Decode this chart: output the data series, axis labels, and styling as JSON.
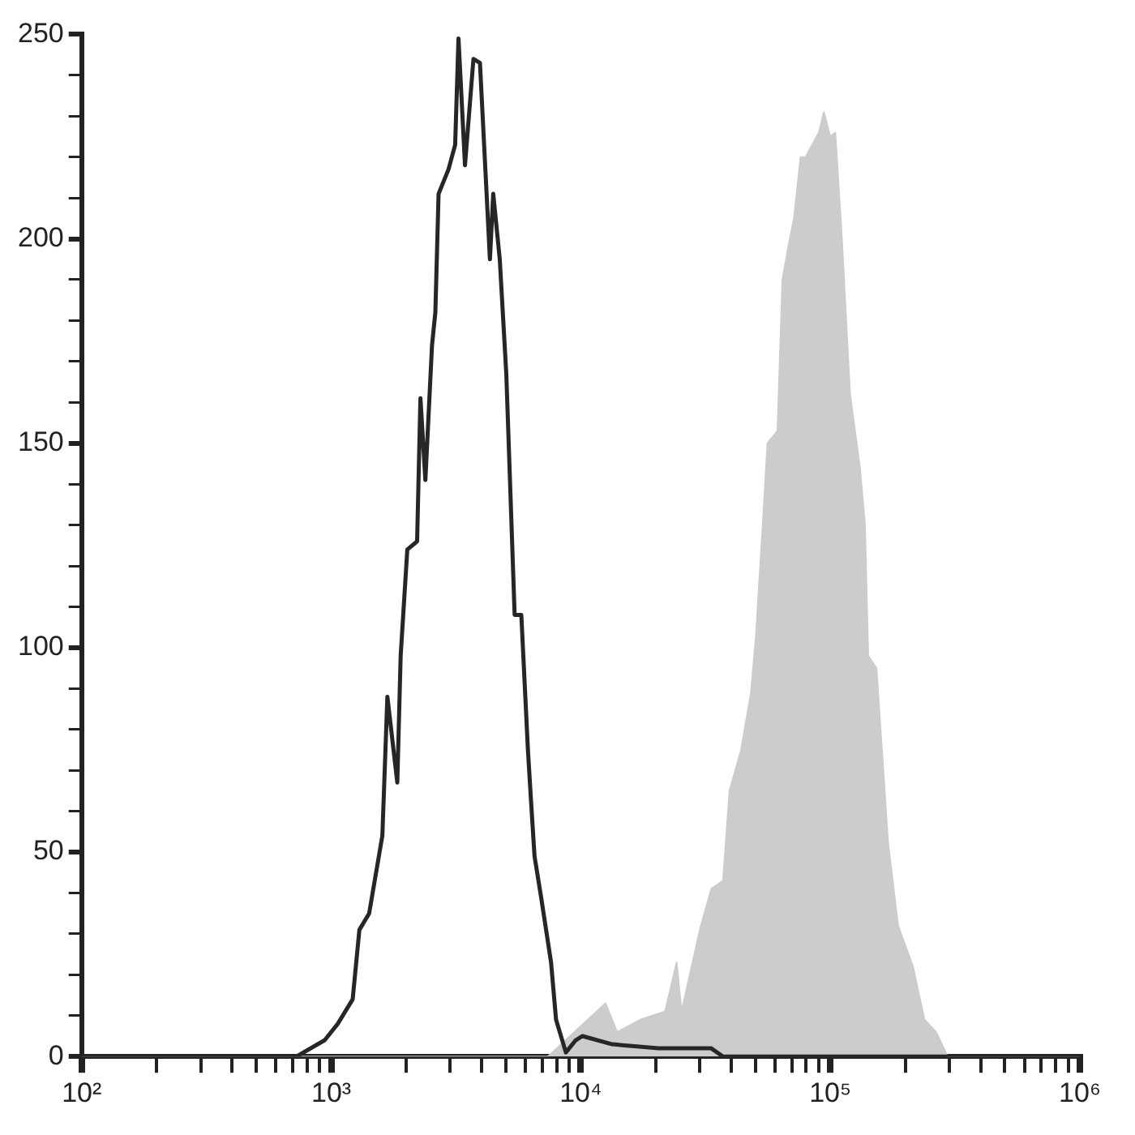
{
  "chart_data": {
    "type": "line",
    "log": "x",
    "grid": false,
    "legend": false,
    "marker": "none",
    "xlim": [
      100,
      1000000
    ],
    "xticks": [
      {
        "value": 100,
        "label": "10²"
      },
      {
        "value": 200,
        "label": null
      },
      {
        "value": 300,
        "label": null
      },
      {
        "value": 400,
        "label": null
      },
      {
        "value": 500,
        "label": null
      },
      {
        "value": 600,
        "label": null
      },
      {
        "value": 700,
        "label": null
      },
      {
        "value": 800,
        "label": null
      },
      {
        "value": 900,
        "label": null
      },
      {
        "value": 1000,
        "label": "10³"
      },
      {
        "value": 2000,
        "label": null
      },
      {
        "value": 3000,
        "label": null
      },
      {
        "value": 4000,
        "label": null
      },
      {
        "value": 5000,
        "label": null
      },
      {
        "value": 6000,
        "label": null
      },
      {
        "value": 7000,
        "label": null
      },
      {
        "value": 8000,
        "label": null
      },
      {
        "value": 9000,
        "label": null
      },
      {
        "value": 10000,
        "label": "10⁴"
      },
      {
        "value": 20000,
        "label": null
      },
      {
        "value": 30000,
        "label": null
      },
      {
        "value": 40000,
        "label": null
      },
      {
        "value": 50000,
        "label": null
      },
      {
        "value": 60000,
        "label": null
      },
      {
        "value": 70000,
        "label": null
      },
      {
        "value": 80000,
        "label": null
      },
      {
        "value": 90000,
        "label": null
      },
      {
        "value": 100000,
        "label": "10⁵"
      },
      {
        "value": 200000,
        "label": null
      },
      {
        "value": 300000,
        "label": null
      },
      {
        "value": 400000,
        "label": null
      },
      {
        "value": 500000,
        "label": null
      },
      {
        "value": 600000,
        "label": null
      },
      {
        "value": 700000,
        "label": null
      },
      {
        "value": 800000,
        "label": null
      },
      {
        "value": 900000,
        "label": null
      },
      {
        "value": 1000000,
        "label": "10⁶"
      }
    ],
    "ylim": [
      0,
      250
    ],
    "yticks": [
      0,
      {
        "value": 10,
        "label": null
      },
      {
        "value": 20,
        "label": null
      },
      {
        "value": 30,
        "label": null
      },
      {
        "value": 40,
        "label": null
      },
      50,
      {
        "value": 60,
        "label": null
      },
      {
        "value": 70,
        "label": null
      },
      {
        "value": 80,
        "label": null
      },
      {
        "value": 90,
        "label": null
      },
      100,
      {
        "value": 110,
        "label": null
      },
      {
        "value": 120,
        "label": null
      },
      {
        "value": 130,
        "label": null
      },
      {
        "value": 140,
        "label": null
      },
      150,
      {
        "value": 160,
        "label": null
      },
      {
        "value": 170,
        "label": null
      },
      {
        "value": 180,
        "label": null
      },
      {
        "value": 190,
        "label": null
      },
      200,
      {
        "value": 210,
        "label": null
      },
      {
        "value": 220,
        "label": null
      },
      {
        "value": 230,
        "label": null
      },
      {
        "value": 240,
        "label": null
      },
      250
    ],
    "series": [
      {
        "type": "area",
        "color": "#cccccc",
        "x": [
          100,
          7380,
          12560,
          13990,
          17300,
          21770,
          24210,
          25350,
          29990,
          33340,
          37150,
          39450,
          43890,
          48080,
          50350,
          53460,
          55980,
          61380,
          64270,
          68280,
          71500,
          76000,
          79580,
          89950,
          94190,
          100000,
          104700,
          111300,
          120000,
          131500,
          137700,
          141900,
          153100,
          170600,
          187000,
          214400,
          238400,
          265500,
          295100,
          1000000
        ],
        "values": [
          0,
          0,
          13,
          6,
          9,
          11,
          23,
          11,
          31,
          41,
          43,
          65,
          75,
          89,
          103,
          129,
          150,
          153,
          190,
          199,
          205,
          220,
          220,
          226,
          231,
          225,
          226,
          200,
          162,
          144,
          130,
          98,
          95,
          52,
          32,
          22,
          9,
          6,
          0,
          0
        ]
      },
      {
        "color": "#262626",
        "x": [
          100,
          726,
          942,
          1062,
          1219,
          1297,
          1419,
          1603,
          1679,
          1840,
          1898,
          2018,
          2209,
          2278,
          2384,
          2535,
          2614,
          2693,
          2951,
          3138,
          3236,
          3436,
          3715,
          3945,
          4325,
          4459,
          4736,
          5030,
          5433,
          5778,
          6141,
          6327,
          6527,
          6934,
          7603,
          7962,
          8715,
          9550,
          10160,
          13360,
          20470,
          33340,
          37150,
          1000000
        ],
        "values": [
          0,
          0,
          4,
          8,
          14,
          31,
          35,
          54,
          88,
          67,
          98,
          124,
          126,
          161,
          141,
          174,
          182,
          211,
          217,
          223,
          249,
          218,
          244,
          243,
          195,
          211,
          195,
          167,
          108,
          108,
          75,
          62,
          49,
          39,
          23,
          9,
          1,
          4,
          5,
          3,
          2,
          2,
          0,
          0
        ]
      }
    ]
  }
}
